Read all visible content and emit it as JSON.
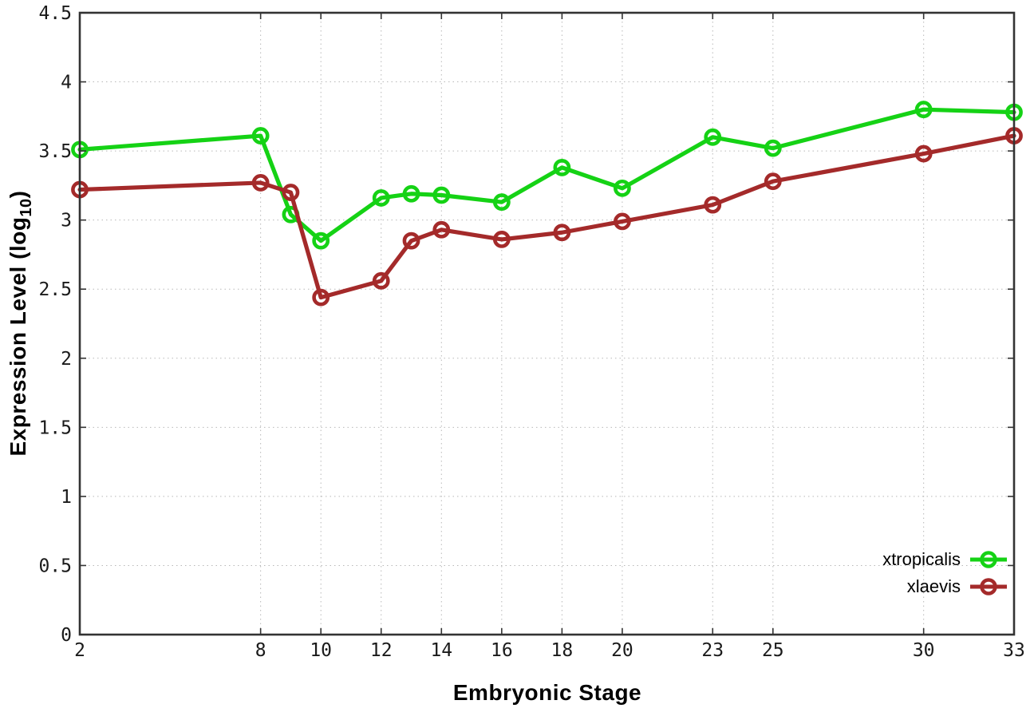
{
  "chart_data": {
    "type": "line",
    "title": "",
    "xlabel": "Embryonic Stage",
    "ylabel": "Expression Level (log10)",
    "ylabel_parts": {
      "pre": "Expression Level (log",
      "sub": "10",
      "post": ")"
    },
    "xlim": [
      2,
      33
    ],
    "ylim": [
      0,
      4.5
    ],
    "grid": true,
    "grid_style": "dotted",
    "legend_position": "bottom-right",
    "x_tick_labels": [
      "2",
      "8",
      "10",
      "12",
      "14",
      "16",
      "18",
      "20",
      "23",
      "25",
      "30",
      "33"
    ],
    "x_tick_values": [
      2,
      8,
      10,
      12,
      14,
      16,
      18,
      20,
      23,
      25,
      30,
      33
    ],
    "y_tick_labels": [
      "0",
      "0.5",
      "1",
      "1.5",
      "2",
      "2.5",
      "3",
      "3.5",
      "4",
      "4.5"
    ],
    "y_tick_values": [
      0,
      0.5,
      1,
      1.5,
      2,
      2.5,
      3,
      3.5,
      4,
      4.5
    ],
    "x": [
      2,
      8,
      9,
      10,
      12,
      13,
      14,
      16,
      18,
      20,
      23,
      25,
      30,
      33
    ],
    "series": [
      {
        "name": "xtropicalis",
        "color": "#15d215",
        "values": [
          3.51,
          3.61,
          3.04,
          2.85,
          3.16,
          3.19,
          3.18,
          3.13,
          3.38,
          3.23,
          3.6,
          3.52,
          3.8,
          3.78
        ]
      },
      {
        "name": "xlaevis",
        "color": "#a42a2a",
        "values": [
          3.22,
          3.27,
          3.2,
          2.44,
          2.56,
          2.85,
          2.93,
          2.86,
          2.91,
          2.99,
          3.11,
          3.28,
          3.48,
          3.61
        ]
      }
    ],
    "colors": {
      "border": "#333333",
      "grid": "#b8b8b8",
      "tick_text": "#1a1a1a",
      "background": "#ffffff"
    }
  }
}
